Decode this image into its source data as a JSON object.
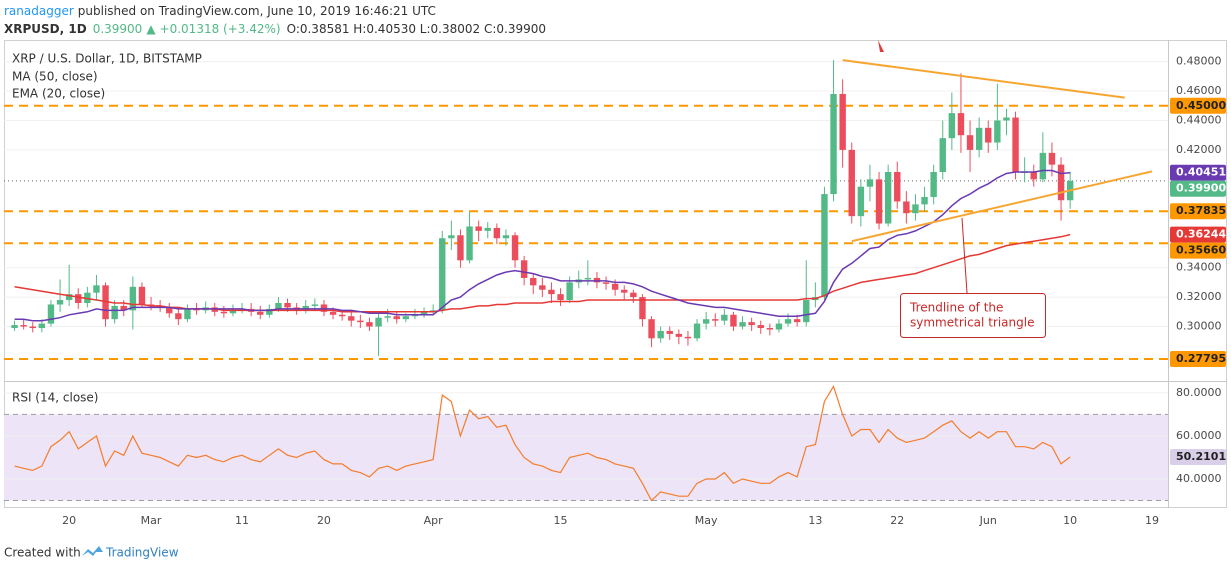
{
  "header": {
    "author": "ranadagger",
    "published": "published on TradingView.com, June 10, 2019 16:46:21 UTC",
    "symbol": "XRPUSD, 1D",
    "price": "0.39900",
    "arrow": "▲",
    "change": "+0.01318 (+3.42%)",
    "ohlc": "O:0.38581 H:0.40530 L:0.38002 C:0.39900"
  },
  "footer": {
    "text": "Created with",
    "brand": "TradingView"
  },
  "chart_data": [
    {
      "type": "candlestick",
      "title": "XRP / U.S. Dollar, 1D, BITSTAMP",
      "categories": [
        null,
        null,
        null,
        null,
        null,
        null,
        "20",
        null,
        null,
        null,
        null,
        null,
        null,
        null,
        null,
        "Mar",
        null,
        null,
        null,
        null,
        null,
        null,
        null,
        null,
        null,
        "11",
        null,
        null,
        null,
        null,
        null,
        null,
        null,
        null,
        "20",
        null,
        null,
        null,
        null,
        null,
        null,
        null,
        null,
        null,
        null,
        null,
        "Apr",
        null,
        null,
        null,
        null,
        null,
        null,
        null,
        null,
        null,
        null,
        null,
        null,
        null,
        "15",
        null,
        null,
        null,
        null,
        null,
        null,
        null,
        null,
        null,
        null,
        null,
        null,
        null,
        null,
        null,
        "May",
        null,
        null,
        null,
        null,
        null,
        null,
        null,
        null,
        null,
        null,
        null,
        "13",
        null,
        null,
        null,
        null,
        null,
        null,
        null,
        null,
        "22",
        null,
        null,
        null,
        null,
        null,
        null,
        null,
        null,
        null,
        "Jun",
        null,
        null,
        null,
        null,
        null,
        null,
        null,
        null,
        "10",
        null,
        null,
        null,
        null,
        null,
        null,
        null,
        null,
        "19",
        null
      ],
      "open": [
        0.299,
        0.301,
        0.3,
        0.299,
        0.302,
        0.315,
        0.318,
        0.322,
        0.316,
        0.323,
        0.328,
        0.305,
        0.314,
        0.311,
        0.327,
        0.315,
        0.314,
        0.313,
        0.309,
        0.305,
        0.312,
        0.311,
        0.313,
        0.31,
        0.309,
        0.311,
        0.312,
        0.31,
        0.308,
        0.312,
        0.316,
        0.313,
        0.311,
        0.314,
        0.315,
        0.31,
        0.308,
        0.307,
        0.304,
        0.303,
        0.3,
        0.306,
        0.307,
        0.305,
        0.307,
        0.308,
        0.31,
        0.311,
        0.36,
        0.362,
        0.345,
        0.368,
        0.365,
        0.367,
        0.36,
        0.362,
        0.345,
        0.333,
        0.328,
        0.325,
        0.322,
        0.318,
        0.33,
        0.332,
        0.333,
        0.33,
        0.329,
        0.325,
        0.323,
        0.32,
        0.305,
        0.292,
        0.297,
        0.295,
        0.293,
        0.292,
        0.302,
        0.305,
        0.304,
        0.308,
        0.3,
        0.303,
        0.301,
        0.299,
        0.298,
        0.302,
        0.305,
        0.303,
        0.318,
        0.32,
        0.39,
        0.458,
        0.42,
        0.375,
        0.395,
        0.4,
        0.37,
        0.405,
        0.385,
        0.377,
        0.383,
        0.388,
        0.405,
        0.428,
        0.445,
        0.43,
        0.42,
        0.435,
        0.425,
        0.44,
        0.442,
        0.405,
        0.405,
        0.4,
        0.418,
        0.41,
        0.38581,
        null,
        null,
        null,
        null,
        null,
        null,
        null,
        null,
        null,
        null
      ],
      "high": [
        0.304,
        0.305,
        0.303,
        0.305,
        0.318,
        0.332,
        0.342,
        0.326,
        0.327,
        0.335,
        0.33,
        0.318,
        0.318,
        0.334,
        0.33,
        0.32,
        0.318,
        0.316,
        0.312,
        0.315,
        0.316,
        0.317,
        0.316,
        0.314,
        0.315,
        0.316,
        0.316,
        0.314,
        0.315,
        0.32,
        0.319,
        0.316,
        0.318,
        0.319,
        0.318,
        0.313,
        0.311,
        0.31,
        0.308,
        0.306,
        0.309,
        0.312,
        0.31,
        0.309,
        0.312,
        0.313,
        0.315,
        0.365,
        0.372,
        0.366,
        0.378,
        0.372,
        0.371,
        0.37,
        0.366,
        0.364,
        0.348,
        0.336,
        0.333,
        0.33,
        0.326,
        0.334,
        0.338,
        0.345,
        0.337,
        0.334,
        0.332,
        0.328,
        0.325,
        0.322,
        0.307,
        0.3,
        0.3,
        0.298,
        0.297,
        0.305,
        0.31,
        0.309,
        0.312,
        0.31,
        0.307,
        0.306,
        0.304,
        0.302,
        0.305,
        0.309,
        0.308,
        0.345,
        0.33,
        0.395,
        0.481,
        0.468,
        0.425,
        0.4,
        0.41,
        0.405,
        0.41,
        0.412,
        0.392,
        0.39,
        0.395,
        0.41,
        0.44,
        0.459,
        0.472,
        0.44,
        0.442,
        0.44,
        0.465,
        0.448,
        0.446,
        0.415,
        0.41,
        0.432,
        0.425,
        0.415,
        0.4053,
        null,
        null,
        null,
        null,
        null,
        null,
        null,
        null,
        null,
        null
      ],
      "low": [
        0.297,
        0.298,
        0.296,
        0.296,
        0.3,
        0.31,
        0.314,
        0.312,
        0.313,
        0.318,
        0.3,
        0.302,
        0.307,
        0.298,
        0.313,
        0.311,
        0.31,
        0.306,
        0.301,
        0.303,
        0.308,
        0.309,
        0.307,
        0.306,
        0.307,
        0.309,
        0.307,
        0.305,
        0.306,
        0.31,
        0.31,
        0.308,
        0.309,
        0.311,
        0.307,
        0.305,
        0.304,
        0.3,
        0.299,
        0.297,
        0.28,
        0.303,
        0.302,
        0.303,
        0.305,
        0.306,
        0.308,
        0.309,
        0.352,
        0.34,
        0.343,
        0.358,
        0.36,
        0.356,
        0.355,
        0.34,
        0.328,
        0.322,
        0.32,
        0.316,
        0.314,
        0.316,
        0.326,
        0.328,
        0.326,
        0.325,
        0.321,
        0.318,
        0.316,
        0.3,
        0.286,
        0.289,
        0.291,
        0.288,
        0.287,
        0.29,
        0.298,
        0.3,
        0.301,
        0.297,
        0.298,
        0.297,
        0.295,
        0.294,
        0.296,
        0.3,
        0.3,
        0.3,
        0.313,
        0.318,
        0.385,
        0.408,
        0.37,
        0.368,
        0.385,
        0.366,
        0.368,
        0.38,
        0.37,
        0.372,
        0.378,
        0.383,
        0.4,
        0.42,
        0.418,
        0.405,
        0.415,
        0.418,
        0.42,
        0.43,
        0.4,
        0.398,
        0.395,
        0.398,
        0.402,
        0.372,
        0.38002,
        null,
        null,
        null,
        null,
        null,
        null,
        null,
        null,
        null,
        null
      ],
      "close": [
        0.301,
        0.3,
        0.299,
        0.302,
        0.315,
        0.318,
        0.322,
        0.316,
        0.323,
        0.328,
        0.305,
        0.314,
        0.311,
        0.327,
        0.315,
        0.314,
        0.313,
        0.309,
        0.305,
        0.312,
        0.311,
        0.313,
        0.31,
        0.309,
        0.311,
        0.312,
        0.31,
        0.308,
        0.312,
        0.316,
        0.313,
        0.311,
        0.314,
        0.315,
        0.31,
        0.308,
        0.307,
        0.304,
        0.303,
        0.3,
        0.306,
        0.307,
        0.305,
        0.307,
        0.308,
        0.31,
        0.311,
        0.36,
        0.362,
        0.345,
        0.368,
        0.365,
        0.367,
        0.36,
        0.362,
        0.345,
        0.333,
        0.328,
        0.325,
        0.322,
        0.318,
        0.33,
        0.332,
        0.333,
        0.33,
        0.329,
        0.325,
        0.323,
        0.32,
        0.305,
        0.292,
        0.297,
        0.295,
        0.293,
        0.292,
        0.302,
        0.305,
        0.304,
        0.308,
        0.3,
        0.303,
        0.301,
        0.299,
        0.298,
        0.302,
        0.305,
        0.303,
        0.318,
        0.32,
        0.39,
        0.458,
        0.42,
        0.375,
        0.395,
        0.4,
        0.37,
        0.405,
        0.385,
        0.377,
        0.383,
        0.388,
        0.405,
        0.428,
        0.445,
        0.43,
        0.42,
        0.435,
        0.425,
        0.44,
        0.442,
        0.405,
        0.405,
        0.4,
        0.418,
        0.41,
        0.38581,
        0.399,
        null,
        null,
        null,
        null,
        null,
        null,
        null,
        null,
        null,
        null
      ],
      "close_label": "0.39900",
      "up_color": "#53b987",
      "down_color": "#eb4d5c",
      "series": [
        {
          "name": "MA (50, close)",
          "color": "#e53935",
          "last_label": "0.36244",
          "values": [
            0.327,
            0.326,
            0.325,
            0.324,
            0.323,
            0.322,
            0.321,
            0.32,
            0.319,
            0.318,
            0.317,
            0.316,
            0.316,
            0.315,
            0.315,
            0.314,
            0.314,
            0.313,
            0.313,
            0.312,
            0.312,
            0.312,
            0.312,
            0.311,
            0.311,
            0.311,
            0.311,
            0.311,
            0.311,
            0.311,
            0.311,
            0.311,
            0.311,
            0.311,
            0.311,
            0.311,
            0.31,
            0.31,
            0.31,
            0.31,
            0.31,
            0.31,
            0.31,
            0.31,
            0.31,
            0.31,
            0.31,
            0.311,
            0.312,
            0.312,
            0.313,
            0.314,
            0.314,
            0.315,
            0.315,
            0.316,
            0.316,
            0.316,
            0.316,
            0.317,
            0.317,
            0.317,
            0.317,
            0.318,
            0.318,
            0.318,
            0.318,
            0.318,
            0.318,
            0.318,
            0.318,
            0.318,
            0.318,
            0.318,
            0.318,
            0.318,
            0.318,
            0.318,
            0.318,
            0.318,
            0.318,
            0.318,
            0.318,
            0.318,
            0.318,
            0.318,
            0.318,
            0.319,
            0.319,
            0.321,
            0.324,
            0.326,
            0.328,
            0.33,
            0.331,
            0.332,
            0.333,
            0.334,
            0.335,
            0.336,
            0.338,
            0.34,
            0.342,
            0.344,
            0.346,
            0.348,
            0.349,
            0.351,
            0.353,
            0.355,
            0.356,
            0.357,
            0.358,
            0.359,
            0.36,
            0.361,
            0.36244,
            null,
            null,
            null,
            null,
            null,
            null,
            null,
            null,
            null,
            null
          ]
        },
        {
          "name": "EMA (20, close)",
          "color": "#6a3ab2",
          "last_label": "0.40451",
          "values": [
            0.305,
            0.305,
            0.304,
            0.304,
            0.305,
            0.306,
            0.308,
            0.309,
            0.31,
            0.312,
            0.311,
            0.311,
            0.311,
            0.313,
            0.313,
            0.313,
            0.313,
            0.313,
            0.312,
            0.312,
            0.312,
            0.312,
            0.312,
            0.312,
            0.312,
            0.312,
            0.311,
            0.311,
            0.311,
            0.312,
            0.312,
            0.312,
            0.312,
            0.312,
            0.312,
            0.312,
            0.311,
            0.311,
            0.31,
            0.309,
            0.309,
            0.309,
            0.308,
            0.308,
            0.308,
            0.308,
            0.308,
            0.313,
            0.318,
            0.32,
            0.325,
            0.329,
            0.332,
            0.335,
            0.337,
            0.338,
            0.337,
            0.336,
            0.334,
            0.333,
            0.331,
            0.331,
            0.331,
            0.331,
            0.331,
            0.331,
            0.33,
            0.33,
            0.329,
            0.327,
            0.324,
            0.322,
            0.32,
            0.318,
            0.316,
            0.315,
            0.314,
            0.313,
            0.313,
            0.312,
            0.311,
            0.31,
            0.309,
            0.308,
            0.307,
            0.307,
            0.307,
            0.308,
            0.309,
            0.317,
            0.33,
            0.339,
            0.343,
            0.348,
            0.353,
            0.354,
            0.359,
            0.362,
            0.363,
            0.365,
            0.368,
            0.371,
            0.376,
            0.382,
            0.387,
            0.39,
            0.394,
            0.397,
            0.401,
            0.404,
            0.405,
            0.405,
            0.405,
            0.406,
            0.406,
            0.404,
            0.40451,
            null,
            null,
            null,
            null,
            null,
            null,
            null,
            null,
            null,
            null
          ]
        }
      ],
      "levels": [
        {
          "value": 0.45,
          "label": "0.45000"
        },
        {
          "value": 0.37835,
          "label": "0.37835"
        },
        {
          "value": 0.3566,
          "label": "0.35660"
        },
        {
          "value": 0.27795,
          "label": "0.27795"
        }
      ],
      "level_color": "#ff9800",
      "trendlines": [
        {
          "x": [
            91,
            122
          ],
          "y": [
            0.481,
            0.4555
          ]
        },
        {
          "x": [
            92,
            125
          ],
          "y": [
            0.358,
            0.4054
          ]
        }
      ],
      "trendline_color": "#f7a531",
      "annotation": [
        "Trendline of the",
        "symmetrical triangle"
      ],
      "ylim": [
        0.263,
        0.494
      ],
      "yticks": [
        {
          "value": 0.3,
          "label": "0.30000"
        },
        {
          "value": 0.32,
          "label": "0.32000"
        },
        {
          "value": 0.34,
          "label": "0.34000"
        },
        {
          "value": 0.42,
          "label": "0.42000"
        },
        {
          "value": 0.44,
          "label": "0.44000"
        },
        {
          "value": 0.46,
          "label": "0.46000"
        },
        {
          "value": 0.48,
          "label": "0.48000"
        }
      ],
      "grid": true
    },
    {
      "type": "line",
      "title": "RSI (14, close)",
      "color": "#f57c2c",
      "last_label": "50.2101",
      "values": [
        46,
        45,
        44,
        46,
        55,
        58,
        62,
        54,
        57,
        60,
        46,
        53,
        51,
        60,
        52,
        51,
        50,
        48,
        46,
        51,
        50,
        51,
        49,
        48,
        50,
        51,
        49,
        48,
        51,
        54,
        51,
        50,
        52,
        53,
        49,
        47,
        47,
        44,
        43,
        41,
        45,
        46,
        44,
        46,
        47,
        48,
        49,
        79,
        76,
        60,
        72,
        68,
        69,
        64,
        65,
        56,
        50,
        47,
        46,
        44,
        43,
        50,
        51,
        52,
        50,
        49,
        47,
        46,
        45,
        38,
        30,
        34,
        33,
        32,
        32,
        38,
        40,
        40,
        43,
        38,
        40,
        39,
        38,
        38,
        41,
        43,
        41,
        55,
        56,
        76,
        83,
        70,
        60,
        63,
        63,
        57,
        63,
        59,
        57,
        58,
        59,
        62,
        65,
        67,
        62,
        59,
        62,
        59,
        62,
        62,
        55,
        55,
        54,
        57,
        55,
        47,
        50.2101,
        null,
        null,
        null,
        null,
        null,
        null,
        null,
        null,
        null,
        null
      ],
      "band": [
        30,
        70
      ],
      "band_color": "#ede5f7",
      "ylim": [
        27,
        84.6
      ],
      "yticks": [
        {
          "value": 40,
          "label": "40.0000"
        },
        {
          "value": 60,
          "label": "60.0000"
        },
        {
          "value": 80,
          "label": "80.0000"
        }
      ],
      "grid": true
    }
  ]
}
